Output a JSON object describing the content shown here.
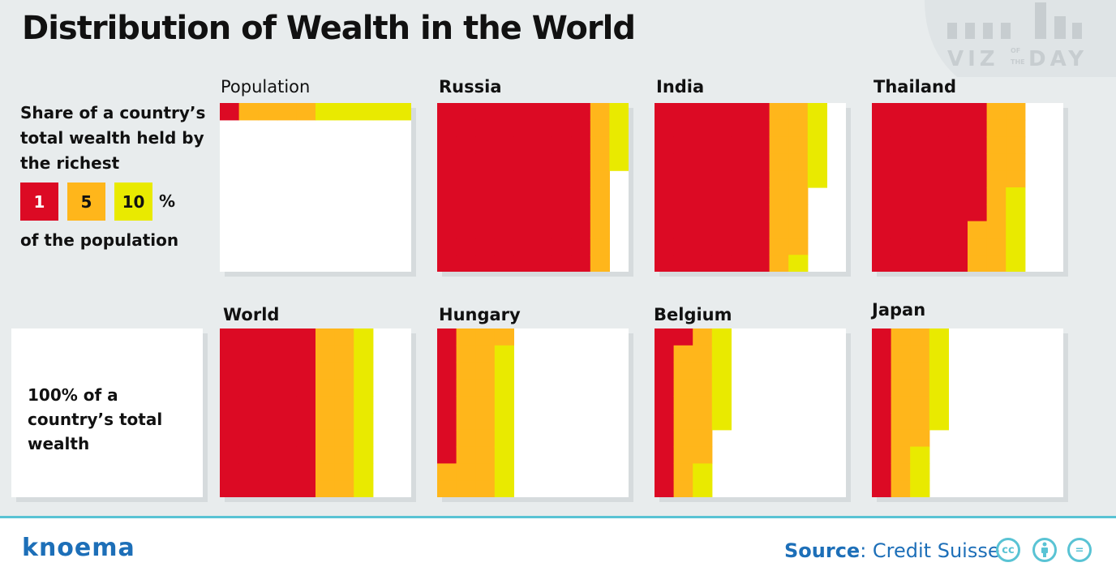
{
  "title": "Distribution of Wealth in the World",
  "logo": {
    "left": "VIZ",
    "middle_top": "OF",
    "middle_bottom": "THE",
    "right": "DAY"
  },
  "legend": {
    "heading": "Share of a country’s total wealth held by the richest",
    "items": [
      {
        "label": "1",
        "color": "#dc0a24"
      },
      {
        "label": "5",
        "color": "#ffb61b"
      },
      {
        "label": "10",
        "color": "#e9ea00"
      }
    ],
    "unit": "%",
    "footer": "of the population"
  },
  "wealth_note": "100% of a country’s total wealth",
  "footer": {
    "brand": "knoema",
    "source_label": "Source",
    "source_value": ": Credit Suisse",
    "license_icons": [
      "cc-icon",
      "attribution-icon",
      "no-derivatives-icon"
    ]
  },
  "chart_data": {
    "type": "heatmap",
    "grid": "10x10 cells per panel, each cell = 1% of total wealth",
    "series_names": [
      "richest 1%",
      "richest 5%",
      "richest 10%"
    ],
    "panels": [
      {
        "name": "Population",
        "values": [
          1,
          5,
          10
        ]
      },
      {
        "name": "Russia",
        "values": [
          80,
          90,
          94
        ]
      },
      {
        "name": "India",
        "values": [
          60,
          79,
          85
        ]
      },
      {
        "name": "Thailand",
        "values": [
          57,
          75,
          80
        ]
      },
      {
        "name": "World",
        "values": [
          50,
          70,
          80
        ]
      },
      {
        "name": "Hungary",
        "values": [
          8,
          31,
          40
        ]
      },
      {
        "name": "Belgium",
        "values": [
          11,
          28,
          36
        ]
      },
      {
        "name": "Japan",
        "values": [
          10,
          27,
          36
        ]
      }
    ]
  }
}
